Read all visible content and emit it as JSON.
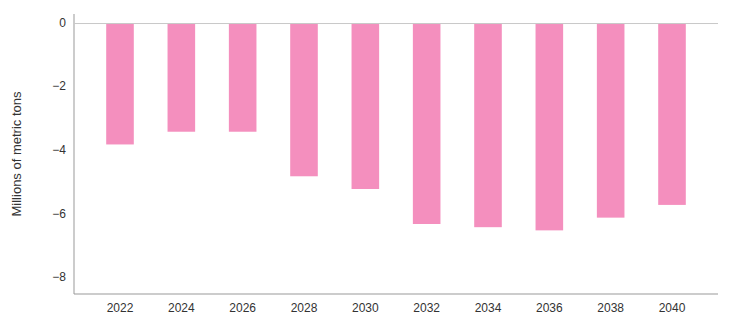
{
  "chart_data": {
    "type": "bar",
    "ylabel": "Millions of metric tons",
    "x": [
      2022,
      2024,
      2026,
      2028,
      2030,
      2032,
      2034,
      2036,
      2038,
      2040
    ],
    "values": [
      -3.8,
      -3.4,
      -3.4,
      -4.8,
      -5.2,
      -6.3,
      -6.4,
      -6.5,
      -6.1,
      -5.7
    ],
    "color": "#F48FBE",
    "xlim": [
      2020.5,
      2041.5
    ],
    "xticks": [
      2022,
      2024,
      2026,
      2028,
      2030,
      2032,
      2034,
      2036,
      2038,
      2040
    ],
    "ylim": [
      -8.5,
      0.3
    ],
    "yticks": [
      0,
      {
        "value": -2,
        "label": "−2"
      },
      {
        "value": -4,
        "label": "−4"
      },
      {
        "value": -6,
        "label": "−6"
      },
      {
        "value": -8,
        "label": "−8"
      }
    ],
    "grid": false
  }
}
